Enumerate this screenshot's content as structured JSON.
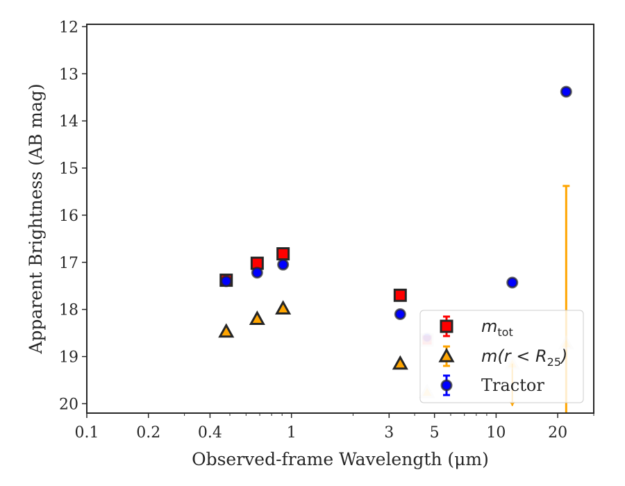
{
  "chart_data": {
    "type": "scatter",
    "title": "",
    "xlabel": "Observed-frame Wavelength (μm)",
    "ylabel": "Apparent Brightness (AB mag)",
    "x_scale": "log",
    "xlim": [
      0.1,
      30
    ],
    "ylim": [
      20.2,
      11.95
    ],
    "y_inverted": true,
    "x_ticks": [
      0.1,
      0.2,
      0.4,
      1,
      3,
      5,
      10,
      20
    ],
    "x_tick_labels": [
      "0.1",
      "0.2",
      "0.4",
      "1",
      "3",
      "5",
      "10",
      "20"
    ],
    "y_ticks": [
      12,
      13,
      14,
      15,
      16,
      17,
      18,
      19,
      20
    ],
    "y_tick_labels": [
      "12",
      "13",
      "14",
      "15",
      "16",
      "17",
      "18",
      "19",
      "20"
    ],
    "legend_position": "lower-right",
    "colors": {
      "tot": "#ff0000",
      "r25": "#ffa500",
      "tractor": "#0000ff",
      "edge": "#262626",
      "faded_edge": "#d3d3d3"
    },
    "series": [
      {
        "name": "m_tot",
        "legend": {
          "main": "m",
          "sub": "tot"
        },
        "marker": "square",
        "points": [
          {
            "x": 0.48,
            "y": 17.38,
            "faded": false
          },
          {
            "x": 0.68,
            "y": 17.02,
            "faded": false
          },
          {
            "x": 0.91,
            "y": 16.82,
            "faded": false
          },
          {
            "x": 3.4,
            "y": 17.7,
            "faded": false
          },
          {
            "x": 4.6,
            "y": 18.65,
            "faded": true
          }
        ]
      },
      {
        "name": "m(r < R25)",
        "legend": {
          "main": "m(r < R",
          "sub": "25",
          "tail": ")"
        },
        "marker": "triangle",
        "points": [
          {
            "x": 0.48,
            "y": 18.47,
            "faded": false
          },
          {
            "x": 0.68,
            "y": 18.2,
            "faded": false
          },
          {
            "x": 0.91,
            "y": 17.98,
            "faded": false
          },
          {
            "x": 3.4,
            "y": 19.15,
            "faded": false
          },
          {
            "x": 4.6,
            "y": 19.75,
            "faded": true
          },
          {
            "x": 12.0,
            "y": 19.15,
            "faded": true,
            "upper_limit_to": 20.05
          },
          {
            "x": 22.0,
            "y": 18.72,
            "faded": true,
            "error_bar": [
              15.38,
              20.2
            ]
          }
        ]
      },
      {
        "name": "Tractor",
        "legend": {
          "main": "Tractor"
        },
        "marker": "circle",
        "points": [
          {
            "x": 0.48,
            "y": 17.4,
            "faded": false
          },
          {
            "x": 0.68,
            "y": 17.22,
            "faded": false
          },
          {
            "x": 0.91,
            "y": 17.05,
            "faded": false
          },
          {
            "x": 3.4,
            "y": 18.1,
            "faded": false
          },
          {
            "x": 4.6,
            "y": 18.6,
            "faded": true
          },
          {
            "x": 12.0,
            "y": 17.43,
            "faded": false
          },
          {
            "x": 22.0,
            "y": 13.38,
            "faded": false
          }
        ]
      }
    ]
  }
}
